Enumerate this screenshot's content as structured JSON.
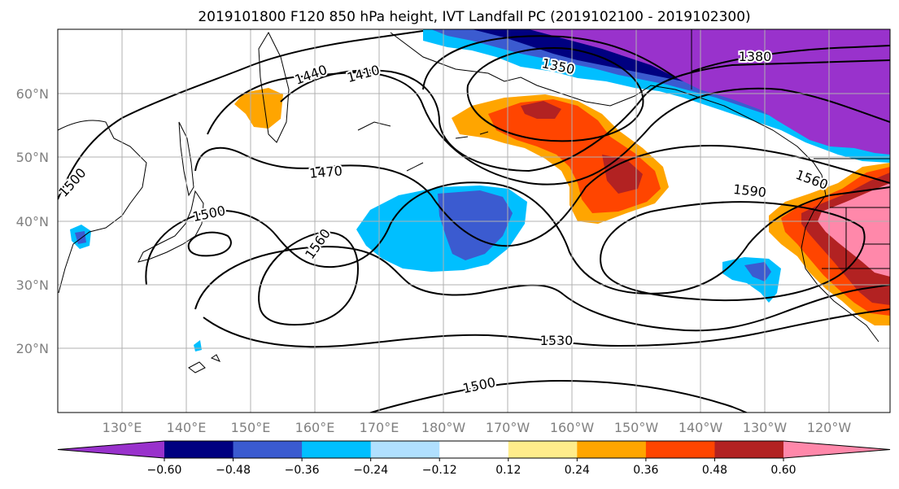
{
  "title": "2019101800 F120 850 hPa height, IVT Landfall PC (2019102100 - 2019102300)",
  "map": {
    "lat_labels": [
      "60°N",
      "50°N",
      "40°N",
      "30°N",
      "20°N"
    ],
    "lon_labels": [
      "130°E",
      "140°E",
      "150°E",
      "160°E",
      "170°E",
      "180°W",
      "170°W",
      "160°W",
      "150°W",
      "140°W",
      "130°W",
      "120°W"
    ],
    "contour_labels": [
      "1440",
      "1410",
      "1350",
      "1380",
      "1500",
      "1470",
      "1560",
      "1590",
      "1500",
      "1560",
      "1530",
      "1500"
    ]
  },
  "colorbar": {
    "colors": [
      "#9932CC",
      "#000080",
      "#3B5BD0",
      "#00BFFF",
      "#B0E0FF",
      "#FFFFFF",
      "#FFEC8B",
      "#FFA500",
      "#FF4500",
      "#B22222",
      "#FF88AA"
    ],
    "tick_labels": [
      "−0.60",
      "−0.48",
      "−0.36",
      "−0.24",
      "−0.12",
      "0.12",
      "0.24",
      "0.36",
      "0.48",
      "0.60"
    ]
  }
}
